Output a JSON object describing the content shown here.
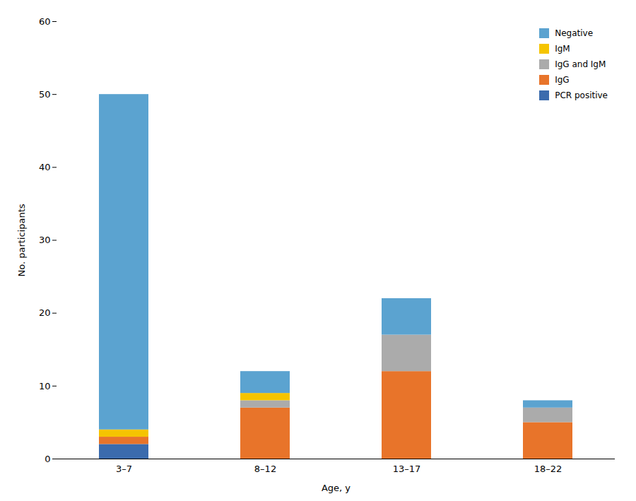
{
  "chart_data": {
    "type": "bar",
    "stacked": true,
    "categories": [
      "3–7",
      "8–12",
      "13–17",
      "18–22"
    ],
    "series": [
      {
        "name": "PCR positive",
        "color": "#3B6BAD",
        "values": [
          2,
          0,
          0,
          0
        ]
      },
      {
        "name": "IgG",
        "color": "#E8742A",
        "values": [
          1,
          7,
          12,
          5
        ]
      },
      {
        "name": "IgG and IgM",
        "color": "#ABABAB",
        "values": [
          0,
          1,
          5,
          2
        ]
      },
      {
        "name": "IgM",
        "color": "#F5C400",
        "values": [
          1,
          1,
          0,
          0
        ]
      },
      {
        "name": "Negative",
        "color": "#5BA3D0",
        "values": [
          46,
          3,
          5,
          1
        ]
      }
    ],
    "xlabel": "Age, y",
    "ylabel": "No. participants",
    "ylim": [
      0,
      60
    ],
    "yticks": [
      0,
      10,
      20,
      30,
      40,
      50,
      60
    ],
    "grid": false,
    "legend": "upper right"
  }
}
